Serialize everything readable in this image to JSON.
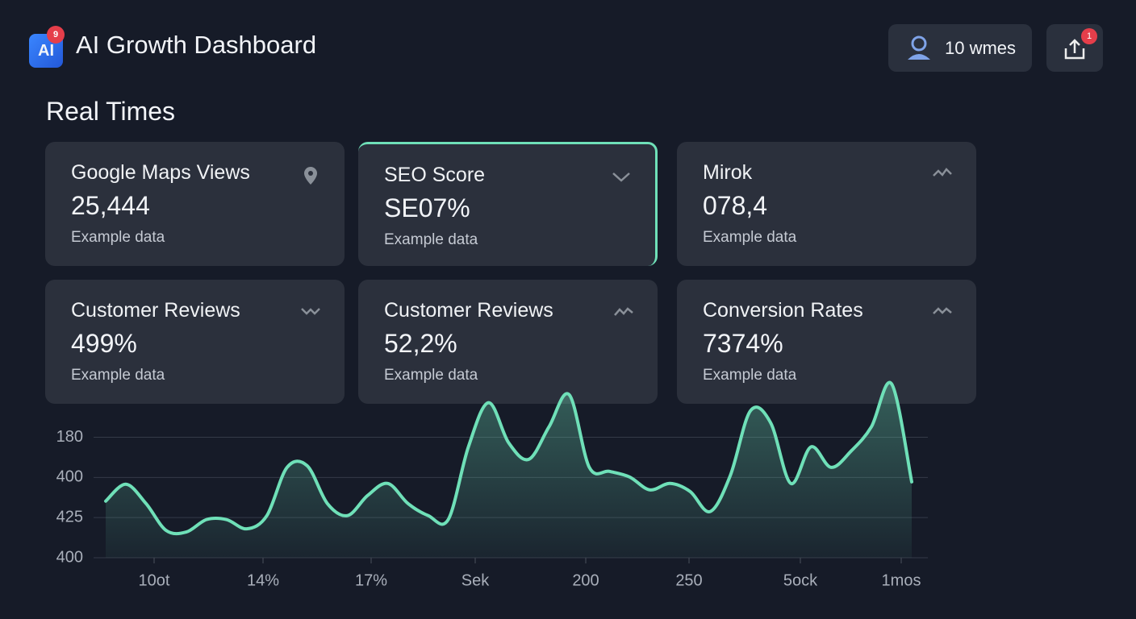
{
  "header": {
    "logo": "AI",
    "logo_badge": "9",
    "title": "AI Growth Dashboard",
    "user": "10 wmes",
    "share_badge": "1"
  },
  "section_title": "Real Times",
  "cards": [
    {
      "title": "Google Maps Views",
      "value": "25,444",
      "subtitle": "Example data"
    },
    {
      "title": "SEO Score",
      "value": "SE07%",
      "subtitle": "Example data"
    },
    {
      "title": "Mirok",
      "value": "078,4",
      "subtitle": "Example data"
    },
    {
      "title": "Customer Reviews",
      "value": "499%",
      "subtitle": "Example data"
    },
    {
      "title": "Customer Reviews",
      "value": "52,2%",
      "subtitle": "Example data"
    },
    {
      "title": "Conversion Rates",
      "value": "7374%",
      "subtitle": "Example data"
    }
  ],
  "chart_data": {
    "type": "area",
    "color": "#6fe0b8",
    "grid": true,
    "x_labels": [
      "10ot",
      "14%",
      "17%",
      "Sek",
      "200",
      "250",
      "5ock",
      "1mos"
    ],
    "ylim": [
      0,
      4.4
    ],
    "yticks": [
      {
        "value": 3,
        "label": "180"
      },
      {
        "value": 2,
        "label": "400"
      },
      {
        "value": 1,
        "label": "425"
      },
      {
        "value": 0,
        "label": "400"
      }
    ],
    "values": [
      1.41,
      1.83,
      1.35,
      0.68,
      0.64,
      0.95,
      0.95,
      0.72,
      1.05,
      2.25,
      2.29,
      1.35,
      1.05,
      1.55,
      1.85,
      1.35,
      1.05,
      0.95,
      2.76,
      3.86,
      2.86,
      2.45,
      3.26,
      4.06,
      2.25,
      2.15,
      2.01,
      1.69,
      1.85,
      1.65,
      1.15,
      2.05,
      3.66,
      3.36,
      1.85,
      2.76,
      2.25,
      2.66,
      3.26,
      4.33,
      1.89
    ]
  }
}
